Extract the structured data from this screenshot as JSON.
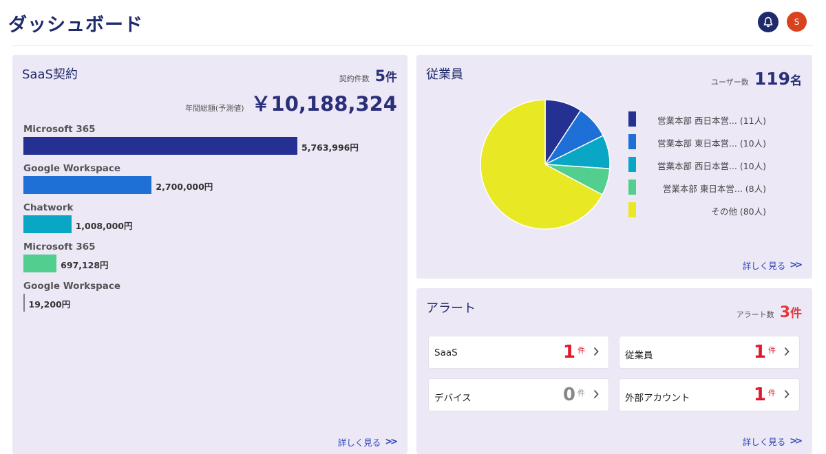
{
  "header": {
    "title": "ダッシュボード",
    "avatar_initial": "S"
  },
  "saas": {
    "title": "SaaS契約",
    "contract_count_label": "契約件数",
    "contract_count": "5",
    "count_unit": "件",
    "annual_label": "年間総額(予測値)",
    "annual_total": "￥10,188,324",
    "more_link": "詳しく見る",
    "chart_data": {
      "type": "bar",
      "orientation": "horizontal",
      "max_value": 5763996,
      "bars": [
        {
          "name": "Microsoft 365",
          "value": 5763996,
          "label": "5,763,996円",
          "color": "#243193"
        },
        {
          "name": "Google Workspace",
          "value": 2700000,
          "label": "2,700,000円",
          "color": "#1e6fd6"
        },
        {
          "name": "Chatwork",
          "value": 1008000,
          "label": "1,008,000円",
          "color": "#0aa6c5"
        },
        {
          "name": "Microsoft 365",
          "value": 697128,
          "label": "697,128円",
          "color": "#52cf8e"
        },
        {
          "name": "Google Workspace",
          "value": 19200,
          "label": "19,200円",
          "color": "#7a7f8a"
        }
      ]
    }
  },
  "employees": {
    "title": "従業員",
    "user_count_label": "ユーザー数",
    "user_count": "119",
    "user_unit": "名",
    "more_link": "詳しく見る",
    "chart_data": {
      "type": "pie",
      "slices": [
        {
          "label": "営業本部 西日本営... (11人)",
          "value": 11,
          "color": "#243193"
        },
        {
          "label": "営業本部 東日本営... (10人)",
          "value": 10,
          "color": "#1e6fd6"
        },
        {
          "label": "営業本部 西日本営... (10人)",
          "value": 10,
          "color": "#0aa6c5"
        },
        {
          "label": "営業本部 東日本営... (8人)",
          "value": 8,
          "color": "#52cf8e"
        },
        {
          "label": "その他 (80人)",
          "value": 80,
          "color": "#e8e824"
        }
      ]
    }
  },
  "alerts": {
    "title": "アラート",
    "alert_count_label": "アラート数",
    "alert_count": "3",
    "count_unit": "件",
    "more_link": "詳しく見る",
    "items": [
      {
        "label": "SaaS",
        "count": "1",
        "unit": "件",
        "color": "#e0182d"
      },
      {
        "label": "従業員",
        "count": "1",
        "unit": "件",
        "color": "#e0182d"
      },
      {
        "label": "デバイス",
        "count": "0",
        "unit": "件",
        "color": "#888888"
      },
      {
        "label": "外部アカウント",
        "count": "1",
        "unit": "件",
        "color": "#e0182d"
      }
    ]
  }
}
